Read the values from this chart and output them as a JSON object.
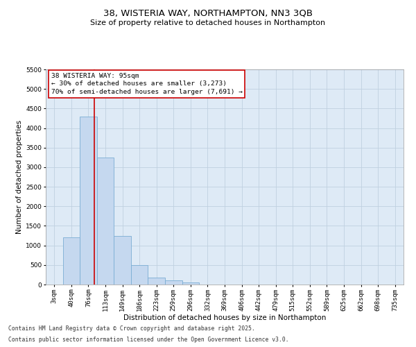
{
  "title_line1": "38, WISTERIA WAY, NORTHAMPTON, NN3 3QB",
  "title_line2": "Size of property relative to detached houses in Northampton",
  "xlabel": "Distribution of detached houses by size in Northampton",
  "ylabel": "Number of detached properties",
  "bin_labels": [
    "3sqm",
    "40sqm",
    "76sqm",
    "113sqm",
    "149sqm",
    "186sqm",
    "223sqm",
    "259sqm",
    "296sqm",
    "332sqm",
    "369sqm",
    "406sqm",
    "442sqm",
    "479sqm",
    "515sqm",
    "552sqm",
    "589sqm",
    "625sqm",
    "662sqm",
    "698sqm",
    "735sqm"
  ],
  "bar_values": [
    0,
    1200,
    4300,
    3250,
    1250,
    500,
    175,
    100,
    50,
    0,
    0,
    0,
    0,
    0,
    0,
    0,
    0,
    0,
    0,
    0,
    0
  ],
  "bar_color": "#c5d8ef",
  "bar_edgecolor": "#7aadd4",
  "bar_linewidth": 0.6,
  "vline_x": 2.35,
  "vline_color": "#cc0000",
  "vline_linewidth": 1.2,
  "annotation_line1": "38 WISTERIA WAY: 95sqm",
  "annotation_line2": "← 30% of detached houses are smaller (3,273)",
  "annotation_line3": "70% of semi-detached houses are larger (7,691) →",
  "box_edgecolor": "#cc0000",
  "box_facecolor": "white",
  "ylim": [
    0,
    5500
  ],
  "yticks": [
    0,
    500,
    1000,
    1500,
    2000,
    2500,
    3000,
    3500,
    4000,
    4500,
    5000,
    5500
  ],
  "grid_color": "#c0d0e0",
  "bg_color": "#deeaf6",
  "footer_line1": "Contains HM Land Registry data © Crown copyright and database right 2025.",
  "footer_line2": "Contains public sector information licensed under the Open Government Licence v3.0.",
  "title_fontsize": 9.5,
  "subtitle_fontsize": 8.0,
  "axis_label_fontsize": 7.5,
  "tick_fontsize": 6.5,
  "annotation_fontsize": 6.8,
  "footer_fontsize": 5.8
}
